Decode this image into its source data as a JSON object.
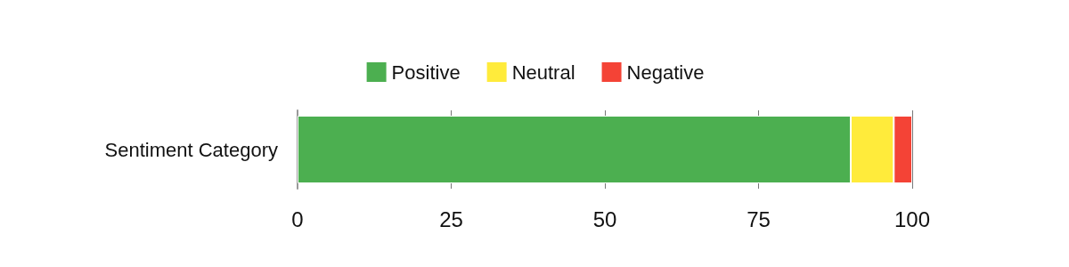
{
  "chart_data": {
    "type": "bar",
    "orientation": "horizontal",
    "stacked": true,
    "categories": [
      "Sentiment Category"
    ],
    "series": [
      {
        "name": "Positive",
        "color": "#4caf50",
        "values": [
          90
        ]
      },
      {
        "name": "Neutral",
        "color": "#ffeb3b",
        "values": [
          7
        ]
      },
      {
        "name": "Negative",
        "color": "#f44336",
        "values": [
          3
        ]
      }
    ],
    "xlim": [
      0,
      100
    ],
    "xticks": [
      0,
      25,
      50,
      75,
      100
    ],
    "grid": "x",
    "legend": "top"
  }
}
